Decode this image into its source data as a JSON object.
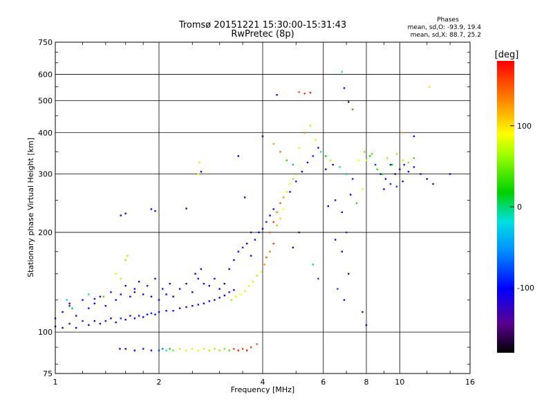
{
  "chart_data": {
    "type": "scatter",
    "title": "Tromsø 20151221 15:30:00-15:31:43",
    "subtitle": "RwPretec (8p)",
    "xlabel": "Frequency [MHz]",
    "ylabel": "Stationary phase Virtual Height [km]",
    "x_scale": "log",
    "y_scale": "log",
    "xlim": [
      1,
      16
    ],
    "ylim": [
      75,
      750
    ],
    "x_ticks": [
      1,
      2,
      4,
      6,
      8,
      10,
      16
    ],
    "x_tick_labels": [
      "1",
      "2",
      "4",
      "6",
      "8",
      "10",
      "16"
    ],
    "y_ticks": [
      75,
      100,
      200,
      300,
      400,
      500,
      600,
      750
    ],
    "y_tick_labels": [
      "75",
      "100",
      "200",
      "300",
      "400",
      "500",
      "600",
      "750"
    ],
    "grid": true,
    "phases": {
      "title": "Phases",
      "line_o": "mean, sd,O: -93.9, 19.4",
      "line_x": "mean, sd,X: 88.7, 25.2"
    },
    "colorbar": {
      "label": "[deg]",
      "range": [
        -180,
        180
      ],
      "ticks": [
        100,
        0,
        -100
      ],
      "tick_labels": [
        "100",
        "0",
        "-100"
      ]
    },
    "series": [
      {
        "points": [
          [
            1.0,
            104,
            -100
          ],
          [
            1.05,
            103,
            -110
          ],
          [
            1.1,
            106,
            -95
          ],
          [
            1.15,
            103,
            -105
          ],
          [
            1.2,
            108,
            -90
          ],
          [
            1.25,
            105,
            -100
          ],
          [
            1.3,
            108,
            -110
          ],
          [
            1.35,
            106,
            -100
          ],
          [
            1.4,
            108,
            -95
          ],
          [
            1.45,
            110,
            -105
          ],
          [
            1.5,
            107,
            -100
          ],
          [
            1.55,
            110,
            -90
          ],
          [
            1.6,
            109,
            -100
          ],
          [
            1.65,
            112,
            -110
          ],
          [
            1.7,
            110,
            -100
          ],
          [
            1.75,
            112,
            -95
          ],
          [
            1.8,
            111,
            -105
          ],
          [
            1.85,
            113,
            -100
          ],
          [
            1.9,
            114,
            -90
          ],
          [
            1.95,
            113,
            -100
          ],
          [
            2.0,
            115,
            -105
          ],
          [
            2.1,
            116,
            -100
          ],
          [
            2.2,
            116,
            -95
          ],
          [
            2.3,
            118,
            -100
          ],
          [
            2.4,
            119,
            -110
          ],
          [
            2.5,
            120,
            -100
          ],
          [
            2.6,
            121,
            -95
          ],
          [
            2.7,
            122,
            -100
          ],
          [
            2.8,
            124,
            -105
          ],
          [
            2.9,
            125,
            -100
          ],
          [
            3.0,
            127,
            -110
          ],
          [
            3.1,
            129,
            -100
          ],
          [
            3.2,
            132,
            -95
          ],
          [
            3.3,
            134,
            -100
          ],
          [
            1.0,
            110,
            -95
          ],
          [
            1.05,
            115,
            -100
          ],
          [
            1.1,
            120,
            -90
          ],
          [
            1.15,
            112,
            -110
          ],
          [
            1.2,
            125,
            -100
          ],
          [
            1.25,
            118,
            -95
          ],
          [
            1.3,
            122,
            -100
          ],
          [
            1.35,
            128,
            -105
          ],
          [
            1.4,
            120,
            -100
          ],
          [
            1.45,
            132,
            -95
          ],
          [
            1.5,
            125,
            -100
          ],
          [
            1.55,
            130,
            -110
          ],
          [
            1.6,
            138,
            -100
          ],
          [
            1.65,
            128,
            -95
          ],
          [
            1.7,
            135,
            -100
          ],
          [
            1.75,
            142,
            -105
          ],
          [
            1.8,
            130,
            -100
          ],
          [
            1.85,
            138,
            -90
          ],
          [
            1.9,
            128,
            -100
          ],
          [
            1.95,
            145,
            -110
          ],
          [
            2.0,
            125,
            -100
          ],
          [
            2.05,
            135,
            -95
          ],
          [
            2.1,
            130,
            -100
          ],
          [
            2.15,
            140,
            -105
          ],
          [
            2.2,
            128,
            -100
          ],
          [
            2.3,
            135,
            -95
          ],
          [
            2.4,
            140,
            -100
          ],
          [
            2.5,
            132,
            -110
          ],
          [
            2.55,
            150,
            -100
          ],
          [
            2.6,
            145,
            -95
          ],
          [
            2.65,
            155,
            -100
          ],
          [
            2.7,
            140,
            -105
          ],
          [
            2.8,
            138,
            -100
          ],
          [
            2.9,
            145,
            -95
          ],
          [
            3.0,
            135,
            -100
          ],
          [
            3.1,
            140,
            -110
          ],
          [
            1.08,
            125,
            -25
          ],
          [
            1.12,
            118,
            15
          ],
          [
            1.25,
            130,
            -20
          ],
          [
            1.38,
            128,
            40
          ],
          [
            1.5,
            150,
            80
          ],
          [
            1.55,
            145,
            70
          ],
          [
            1.6,
            165,
            60
          ],
          [
            1.62,
            170,
            110
          ],
          [
            1.1,
            122,
            -150
          ],
          [
            1.3,
            126,
            -140
          ],
          [
            1.7,
            132,
            -130
          ],
          [
            2.2,
            128,
            -145
          ],
          [
            3.2,
            155,
            -100
          ],
          [
            3.3,
            165,
            -110
          ],
          [
            3.4,
            175,
            -100
          ],
          [
            3.5,
            180,
            -90
          ],
          [
            3.6,
            185,
            -100
          ],
          [
            3.7,
            170,
            -95
          ],
          [
            3.8,
            190,
            -100
          ],
          [
            3.9,
            200,
            -105
          ],
          [
            4.0,
            205,
            -100
          ],
          [
            4.1,
            215,
            -90
          ],
          [
            4.2,
            225,
            -100
          ],
          [
            4.3,
            235,
            -110
          ],
          [
            3.25,
            125,
            60
          ],
          [
            3.35,
            128,
            80
          ],
          [
            3.45,
            130,
            90
          ],
          [
            3.55,
            133,
            100
          ],
          [
            3.65,
            138,
            95
          ],
          [
            3.75,
            142,
            100
          ],
          [
            3.85,
            148,
            110
          ],
          [
            3.95,
            152,
            90
          ],
          [
            4.05,
            160,
            130
          ],
          [
            4.1,
            168,
            150
          ],
          [
            4.2,
            175,
            140
          ],
          [
            4.3,
            185,
            160
          ],
          [
            4.2,
            200,
            150
          ],
          [
            4.3,
            215,
            160
          ],
          [
            4.4,
            230,
            140
          ],
          [
            4.5,
            245,
            150
          ],
          [
            4.6,
            255,
            130
          ],
          [
            4.7,
            265,
            100
          ],
          [
            4.8,
            280,
            80
          ],
          [
            4.9,
            290,
            60
          ],
          [
            5.0,
            300,
            40
          ],
          [
            4.4,
            210,
            120
          ],
          [
            4.5,
            220,
            110
          ],
          [
            4.6,
            235,
            90
          ],
          [
            4.8,
            265,
            -100
          ],
          [
            5.0,
            285,
            -95
          ],
          [
            5.2,
            305,
            -105
          ],
          [
            5.4,
            325,
            -100
          ],
          [
            5.6,
            340,
            -90
          ],
          [
            5.8,
            360,
            -100
          ],
          [
            4.0,
            390,
            -100
          ],
          [
            4.3,
            370,
            120
          ],
          [
            4.5,
            350,
            140
          ],
          [
            4.7,
            330,
            30
          ],
          [
            4.9,
            320,
            -40
          ],
          [
            5.1,
            360,
            100
          ],
          [
            5.3,
            400,
            130
          ],
          [
            5.5,
            420,
            110
          ],
          [
            5.7,
            380,
            80
          ],
          [
            5.9,
            350,
            -20
          ],
          [
            6.1,
            340,
            20
          ],
          [
            6.3,
            330,
            70
          ],
          [
            5.1,
            530,
            150
          ],
          [
            5.3,
            525,
            160
          ],
          [
            5.5,
            528,
            170
          ],
          [
            4.4,
            520,
            -100
          ],
          [
            6.8,
            610,
            -20
          ],
          [
            6.9,
            545,
            -100
          ],
          [
            7.1,
            495,
            -120
          ],
          [
            7.3,
            470,
            150
          ],
          [
            6.1,
            310,
            -100
          ],
          [
            6.4,
            320,
            -110
          ],
          [
            6.7,
            315,
            -20
          ],
          [
            7.0,
            300,
            0
          ],
          [
            7.3,
            290,
            -90
          ],
          [
            7.6,
            330,
            90
          ],
          [
            7.9,
            350,
            50
          ],
          [
            8.2,
            340,
            20
          ],
          [
            8.5,
            320,
            -80
          ],
          [
            8.8,
            300,
            -100
          ],
          [
            9.1,
            290,
            -110
          ],
          [
            9.4,
            320,
            -90
          ],
          [
            9.7,
            300,
            -110
          ],
          [
            10.0,
            310,
            -100
          ],
          [
            10.3,
            320,
            -95
          ],
          [
            10.6,
            305,
            -105
          ],
          [
            11.0,
            315,
            -100
          ],
          [
            11.5,
            300,
            -110
          ],
          [
            12.0,
            290,
            -100
          ],
          [
            12.5,
            280,
            -95
          ],
          [
            8.0,
            330,
            80
          ],
          [
            8.3,
            345,
            40
          ],
          [
            8.6,
            310,
            30
          ],
          [
            8.9,
            300,
            10
          ],
          [
            9.2,
            335,
            60
          ],
          [
            9.5,
            320,
            20
          ],
          [
            9.8,
            345,
            110
          ],
          [
            10.2,
            330,
            70
          ],
          [
            10.6,
            325,
            50
          ],
          [
            11.0,
            335,
            30
          ],
          [
            9.0,
            270,
            -100
          ],
          [
            9.4,
            280,
            -90
          ],
          [
            9.8,
            275,
            -80
          ],
          [
            10.2,
            285,
            -100
          ],
          [
            6.2,
            240,
            -100
          ],
          [
            6.5,
            250,
            -95
          ],
          [
            6.8,
            230,
            -110
          ],
          [
            7.2,
            260,
            -100
          ],
          [
            7.5,
            245,
            30
          ],
          [
            7.8,
            270,
            80
          ],
          [
            6.5,
            190,
            -100
          ],
          [
            6.8,
            175,
            -110
          ],
          [
            7.0,
            200,
            -90
          ],
          [
            6.6,
            135,
            -80
          ],
          [
            6.9,
            125,
            -100
          ],
          [
            7.8,
            115,
            -110
          ],
          [
            8.0,
            105,
            -100
          ],
          [
            7.1,
            150,
            -120
          ],
          [
            12.2,
            550,
            100
          ],
          [
            10.2,
            400,
            120
          ],
          [
            11.0,
            390,
            -100
          ],
          [
            14.0,
            300,
            -110
          ],
          [
            1.55,
            225,
            -100
          ],
          [
            1.6,
            228,
            -110
          ],
          [
            1.9,
            235,
            -100
          ],
          [
            1.95,
            232,
            -95
          ],
          [
            2.4,
            236,
            -100
          ],
          [
            2.6,
            300,
            90
          ],
          [
            2.65,
            305,
            -100
          ],
          [
            2.62,
            325,
            100
          ],
          [
            3.55,
            255,
            -100
          ],
          [
            3.4,
            340,
            -110
          ],
          [
            3.7,
            200,
            -130
          ],
          [
            5.6,
            160,
            -30
          ],
          [
            5.8,
            145,
            -80
          ],
          [
            4.9,
            180,
            -100
          ],
          [
            5.1,
            200,
            -110
          ],
          [
            1.54,
            89,
            -110
          ],
          [
            1.6,
            89,
            -105
          ],
          [
            1.7,
            88,
            -100
          ],
          [
            1.8,
            89,
            -95
          ],
          [
            1.9,
            88,
            -100
          ],
          [
            2.0,
            88,
            -80
          ],
          [
            2.05,
            89,
            -60
          ],
          [
            2.1,
            88,
            -20
          ],
          [
            2.15,
            89,
            20
          ],
          [
            2.2,
            88,
            50
          ],
          [
            2.3,
            89,
            70
          ],
          [
            2.4,
            88,
            80
          ],
          [
            2.5,
            89,
            75
          ],
          [
            2.6,
            88,
            80
          ],
          [
            2.7,
            89,
            70
          ],
          [
            2.8,
            88,
            65
          ],
          [
            2.9,
            89,
            60
          ],
          [
            3.0,
            88,
            55
          ],
          [
            3.1,
            89,
            50
          ],
          [
            3.2,
            88,
            40
          ],
          [
            3.3,
            89,
            160
          ],
          [
            3.4,
            88,
            170
          ],
          [
            3.5,
            89,
            165
          ],
          [
            3.6,
            88,
            175
          ],
          [
            3.7,
            90,
            160
          ],
          [
            3.85,
            92,
            150
          ]
        ]
      }
    ]
  }
}
